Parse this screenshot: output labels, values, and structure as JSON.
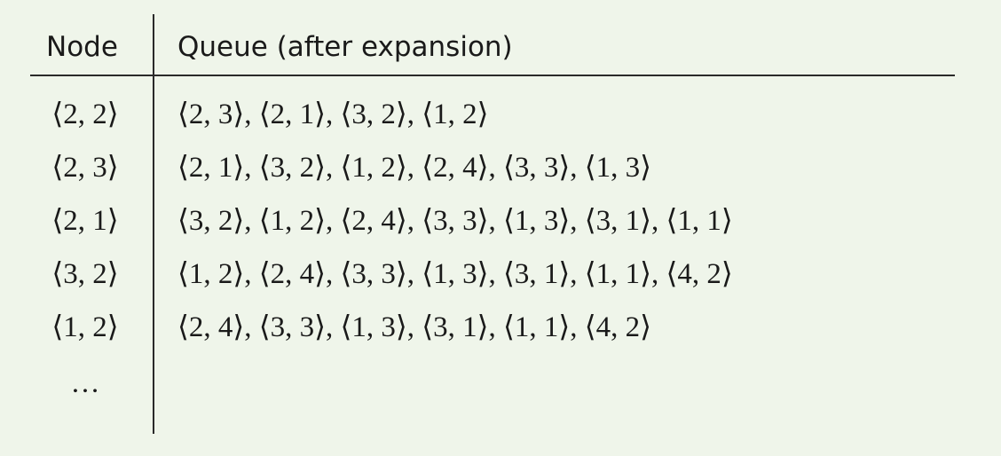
{
  "table": {
    "headers": {
      "node": "Node",
      "queue": "Queue (after expansion)"
    },
    "rows": [
      {
        "node": "⟨2, 2⟩",
        "queue": "⟨2, 3⟩, ⟨2, 1⟩, ⟨3, 2⟩, ⟨1, 2⟩"
      },
      {
        "node": "⟨2, 3⟩",
        "queue": "⟨2, 1⟩, ⟨3, 2⟩, ⟨1, 2⟩, ⟨2, 4⟩, ⟨3, 3⟩, ⟨1, 3⟩"
      },
      {
        "node": "⟨2, 1⟩",
        "queue": "⟨3, 2⟩, ⟨1, 2⟩, ⟨2, 4⟩, ⟨3, 3⟩, ⟨1, 3⟩, ⟨3, 1⟩, ⟨1, 1⟩"
      },
      {
        "node": "⟨3, 2⟩",
        "queue": "⟨1, 2⟩, ⟨2, 4⟩, ⟨3, 3⟩, ⟨1, 3⟩, ⟨3, 1⟩, ⟨1, 1⟩, ⟨4, 2⟩"
      },
      {
        "node": "⟨1, 2⟩",
        "queue": "⟨2, 4⟩, ⟨3, 3⟩, ⟨1, 3⟩, ⟨3, 1⟩, ⟨1, 1⟩, ⟨4, 2⟩"
      },
      {
        "node": "…",
        "queue": ""
      }
    ]
  },
  "colors": {
    "background": "#eff5ea",
    "text": "#1a1a1a",
    "rule": "#2a2a2a"
  }
}
